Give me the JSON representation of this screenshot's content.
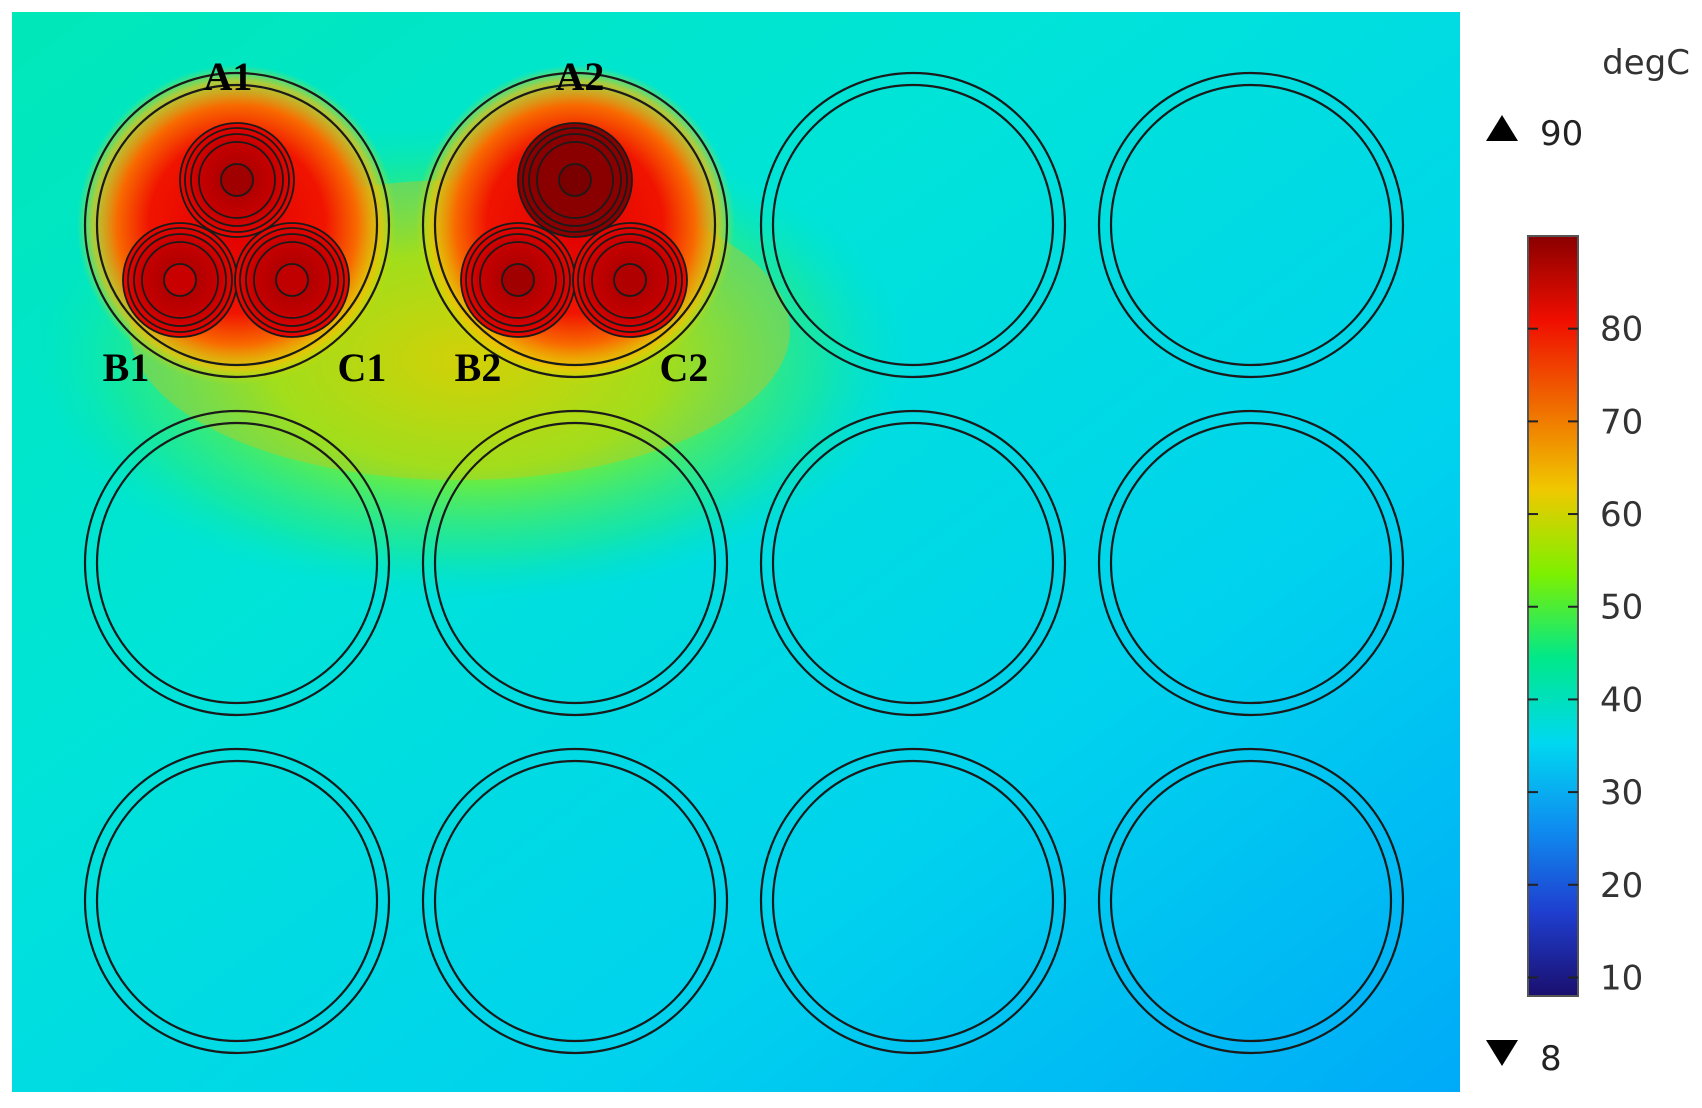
{
  "unit": "degC",
  "max_label": "90",
  "min_label": "8",
  "ticks": [
    "10",
    "20",
    "30",
    "40",
    "50",
    "60",
    "70",
    "80"
  ],
  "tick_values": [
    10,
    20,
    30,
    40,
    50,
    60,
    70,
    80
  ],
  "range": [
    8,
    90
  ],
  "phases": {
    "a1": "A1",
    "b1": "B1",
    "c1": "C1",
    "a2": "A2",
    "b2": "B2",
    "c2": "C2"
  },
  "colormap": [
    "#1a0f6e",
    "#1f3fd0",
    "#0e8ef0",
    "#00d8f0",
    "#00e88a",
    "#7ef000",
    "#f0c800",
    "#f06a00",
    "#f00e00",
    "#8a0000"
  ],
  "ducts": {
    "rows": 3,
    "cols": 4,
    "occupied": [
      "r1c1",
      "r1c2"
    ]
  }
}
